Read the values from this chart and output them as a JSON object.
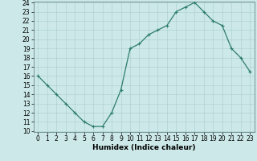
{
  "xlabel": "Humidex (Indice chaleur)",
  "x": [
    0,
    1,
    2,
    3,
    4,
    5,
    6,
    7,
    8,
    9,
    10,
    11,
    12,
    13,
    14,
    15,
    16,
    17,
    18,
    19,
    20,
    21,
    22,
    23
  ],
  "y": [
    16,
    15,
    14,
    13,
    12,
    11,
    10.5,
    10.5,
    12,
    14.5,
    19,
    19.5,
    20.5,
    21,
    21.5,
    23,
    23.5,
    24,
    23,
    22,
    21.5,
    19,
    18,
    16.5
  ],
  "line_color": "#2e7d6e",
  "marker": "+",
  "bg_color": "#cce8e8",
  "grid_color": "#aacece",
  "ylim": [
    10,
    24
  ],
  "xlim": [
    -0.5,
    23.5
  ],
  "yticks": [
    10,
    11,
    12,
    13,
    14,
    15,
    16,
    17,
    18,
    19,
    20,
    21,
    22,
    23,
    24
  ],
  "xticks": [
    0,
    1,
    2,
    3,
    4,
    5,
    6,
    7,
    8,
    9,
    10,
    11,
    12,
    13,
    14,
    15,
    16,
    17,
    18,
    19,
    20,
    21,
    22,
    23
  ],
  "label_fontsize": 6.5,
  "tick_fontsize": 5.5
}
